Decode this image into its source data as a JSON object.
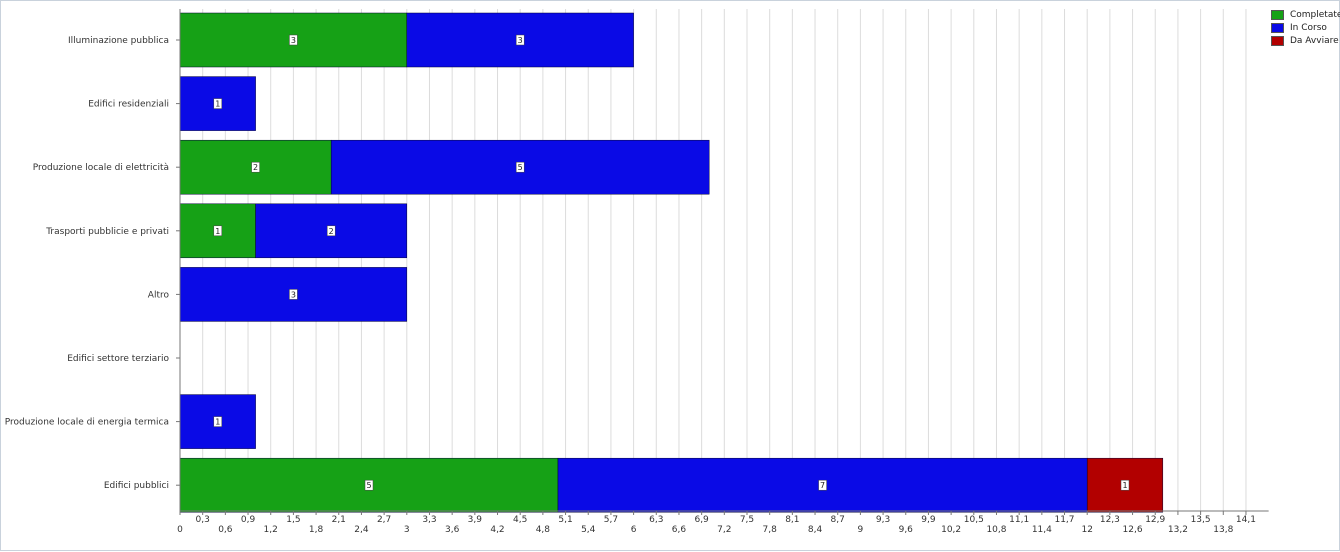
{
  "chart_data": {
    "type": "bar",
    "orientation": "horizontal",
    "stacked": true,
    "categories": [
      "Illuminazione pubblica",
      "Edifici residenziali",
      "Produzione locale di elettricità",
      "Trasporti pubblicie e privati",
      "Altro",
      "Edifici settore terziario",
      "Produzione locale di energia termica",
      "Edifici pubblici"
    ],
    "series": [
      {
        "name": "Completate",
        "color": "#16a116",
        "values": [
          3,
          0,
          2,
          1,
          0,
          0,
          0,
          5
        ]
      },
      {
        "name": "In Corso",
        "color": "#0a0ae6",
        "values": [
          3,
          1,
          5,
          2,
          3,
          0,
          1,
          7
        ]
      },
      {
        "name": "Da Avviare",
        "color": "#b20000",
        "values": [
          0,
          0,
          0,
          0,
          0,
          0,
          0,
          1
        ]
      }
    ],
    "xlim": [
      0,
      14.4
    ],
    "xticks": [
      "0",
      "0,3",
      "0,6",
      "0,9",
      "1,2",
      "1,5",
      "1,8",
      "2,1",
      "2,4",
      "2,7",
      "3",
      "3,3",
      "3,6",
      "3,9",
      "4,2",
      "4,5",
      "4,8",
      "5,1",
      "5,4",
      "5,7",
      "6",
      "6,3",
      "6,6",
      "6,9",
      "7,2",
      "7,5",
      "7,8",
      "8,1",
      "8,4",
      "8,7",
      "9",
      "9,3",
      "9,6",
      "9,9",
      "10,2",
      "10,5",
      "10,8",
      "11,1",
      "11,4",
      "11,7",
      "12",
      "12,3",
      "12,6",
      "12,9",
      "13,2",
      "13,5",
      "13,8",
      "14,1"
    ],
    "grid": true,
    "legend_position": "top-right"
  }
}
